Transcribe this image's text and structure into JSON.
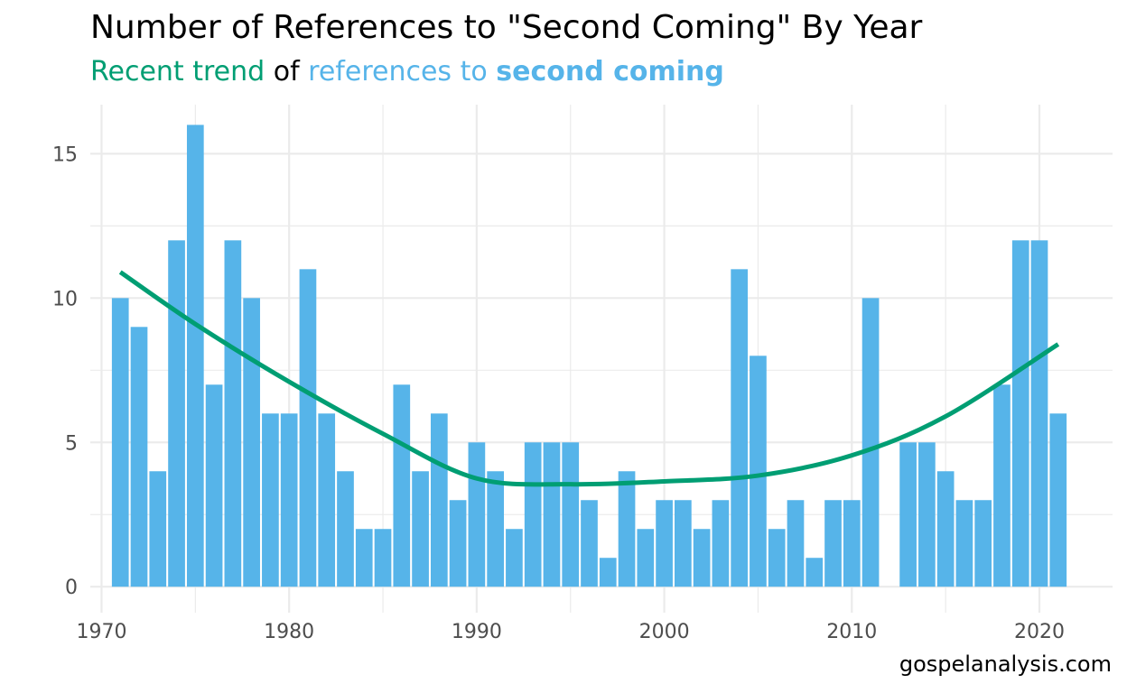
{
  "title": "Number of References to \"Second Coming\" By Year",
  "subtitle": {
    "part1": "Recent trend",
    "part2": " of ",
    "part3": "references to ",
    "part4": "second coming"
  },
  "caption": "gospelanalysis.com",
  "colors": {
    "bar": "#56B4E9",
    "trend": "#009E73",
    "grid": "#EBEBEB",
    "text_dark": "#000000",
    "tick_text": "#4D4D4D"
  },
  "chart_data": {
    "type": "bar",
    "x": [
      1971,
      1972,
      1973,
      1974,
      1975,
      1976,
      1977,
      1978,
      1979,
      1980,
      1981,
      1982,
      1983,
      1984,
      1985,
      1986,
      1987,
      1988,
      1989,
      1990,
      1991,
      1992,
      1993,
      1994,
      1995,
      1996,
      1997,
      1998,
      1999,
      2000,
      2001,
      2002,
      2003,
      2004,
      2005,
      2006,
      2007,
      2008,
      2009,
      2010,
      2011,
      2012,
      2013,
      2014,
      2015,
      2016,
      2017,
      2018,
      2019,
      2020,
      2021
    ],
    "values": [
      10,
      9,
      4,
      12,
      16,
      7,
      12,
      10,
      6,
      6,
      11,
      6,
      4,
      2,
      2,
      7,
      4,
      6,
      3,
      5,
      4,
      2,
      5,
      5,
      5,
      3,
      1,
      4,
      2,
      3,
      3,
      2,
      3,
      11,
      8,
      2,
      3,
      1,
      3,
      3,
      10,
      0,
      5,
      5,
      4,
      3,
      3,
      7,
      12,
      12,
      6
    ],
    "trend": {
      "x": [
        1971,
        1975,
        1980,
        1985,
        1990,
        1995,
        2000,
        2005,
        2010,
        2015,
        2021
      ],
      "y": [
        10.9,
        9.1,
        7.1,
        5.3,
        3.75,
        3.55,
        3.65,
        3.85,
        4.55,
        5.9,
        8.4
      ]
    },
    "xlim": [
      1969.4,
      2023.9
    ],
    "ylim": [
      -0.9,
      16.7
    ],
    "xticks": [
      1970,
      1980,
      1990,
      2000,
      2010,
      2020
    ],
    "yticks": [
      0,
      5,
      10,
      15
    ],
    "grid": true
  }
}
